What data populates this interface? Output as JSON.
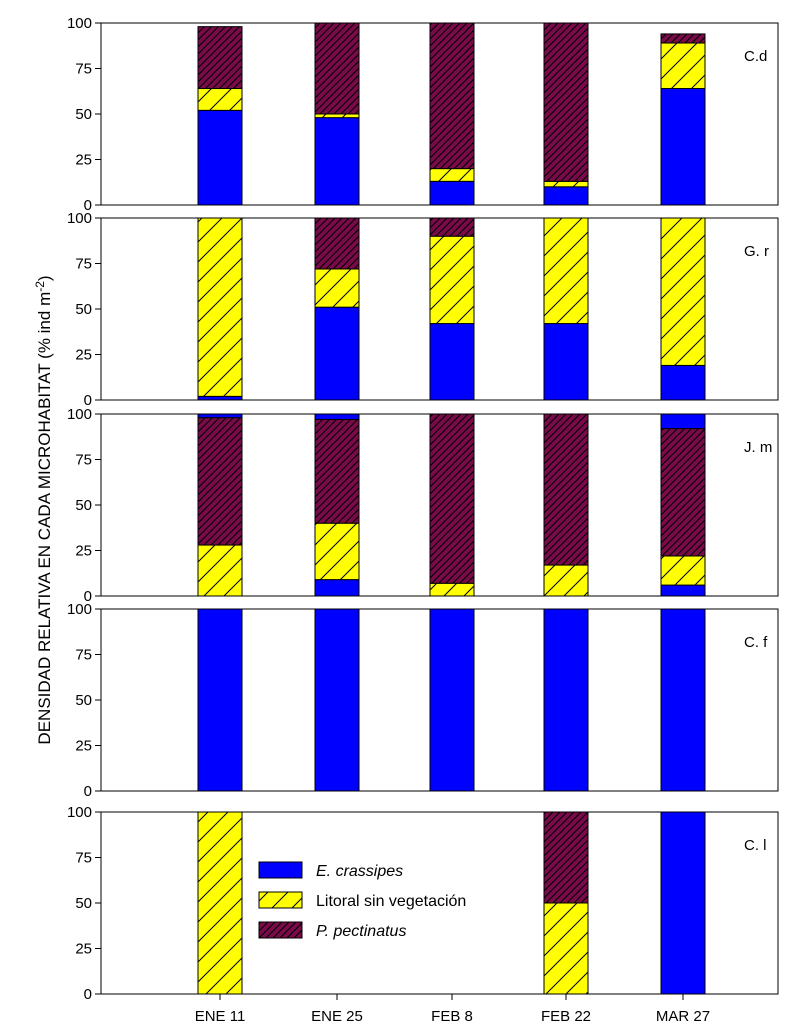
{
  "chart_data": {
    "type": "bar",
    "stacked": true,
    "ylabel": "DENSIDAD RELATIVA EN CADA MICROHABITAT (% ind m",
    "ylabel_superscript": "-2",
    "ylabel_close": ")",
    "ylim": [
      0,
      100
    ],
    "yticks": [
      "0",
      "25",
      "50",
      "75",
      "100"
    ],
    "categories": [
      "ENE 11",
      "ENE 25",
      "FEB 8",
      "FEB 22",
      "MAR 27"
    ],
    "colors": {
      "E. crassipes": "#0000ff",
      "Litoral sin vegetación": "#ffff00",
      "P. pectinatus": "#7a0a4a"
    },
    "legend": {
      "position": "inside bottom panel, center-left",
      "entries": [
        {
          "name": "E. crassipes",
          "italic": true,
          "pattern": "solid"
        },
        {
          "name": "Litoral sin vegetación",
          "italic": false,
          "pattern": "hatch-wide"
        },
        {
          "name": "P. pectinatus",
          "italic": true,
          "pattern": "hatch-dense"
        }
      ]
    },
    "panels": [
      {
        "label": "C.d",
        "series": [
          {
            "name": "E. crassipes",
            "values": [
              52,
              48,
              13,
              10,
              64
            ]
          },
          {
            "name": "Litoral sin vegetación",
            "values": [
              12,
              2,
              7,
              3,
              25
            ]
          },
          {
            "name": "P. pectinatus",
            "values": [
              34,
              50,
              80,
              87,
              5
            ]
          }
        ]
      },
      {
        "label": "G. r",
        "series": [
          {
            "name": "E. crassipes",
            "values": [
              2,
              51,
              42,
              42,
              19
            ]
          },
          {
            "name": "Litoral sin vegetación",
            "values": [
              98,
              21,
              48,
              58,
              81
            ]
          },
          {
            "name": "P. pectinatus",
            "values": [
              0,
              28,
              10,
              0,
              0
            ]
          }
        ]
      },
      {
        "label": "J. m",
        "series": [
          {
            "name": "E. crassipes",
            "values": [
              0,
              9,
              0,
              0,
              6
            ]
          },
          {
            "name": "Litoral sin vegetación",
            "values": [
              28,
              31,
              7,
              17,
              16
            ]
          },
          {
            "name": "P. pectinatus",
            "values": [
              70,
              57,
              93,
              83,
              70
            ]
          }
        ],
        "top_ecrassipes": [
          2,
          3,
          0,
          0,
          8
        ]
      },
      {
        "label": "C. f",
        "series": [
          {
            "name": "E. crassipes",
            "values": [
              100,
              100,
              100,
              100,
              100
            ]
          },
          {
            "name": "Litoral sin vegetación",
            "values": [
              0,
              0,
              0,
              0,
              0
            ]
          },
          {
            "name": "P. pectinatus",
            "values": [
              0,
              0,
              0,
              0,
              0
            ]
          }
        ]
      },
      {
        "label": "C. l",
        "series": [
          {
            "name": "E. crassipes",
            "values": [
              0,
              0,
              0,
              0,
              100
            ]
          },
          {
            "name": "Litoral sin vegetación",
            "values": [
              100,
              0,
              0,
              50,
              0
            ]
          },
          {
            "name": "P. pectinatus",
            "values": [
              0,
              0,
              0,
              50,
              0
            ]
          }
        ]
      }
    ]
  }
}
